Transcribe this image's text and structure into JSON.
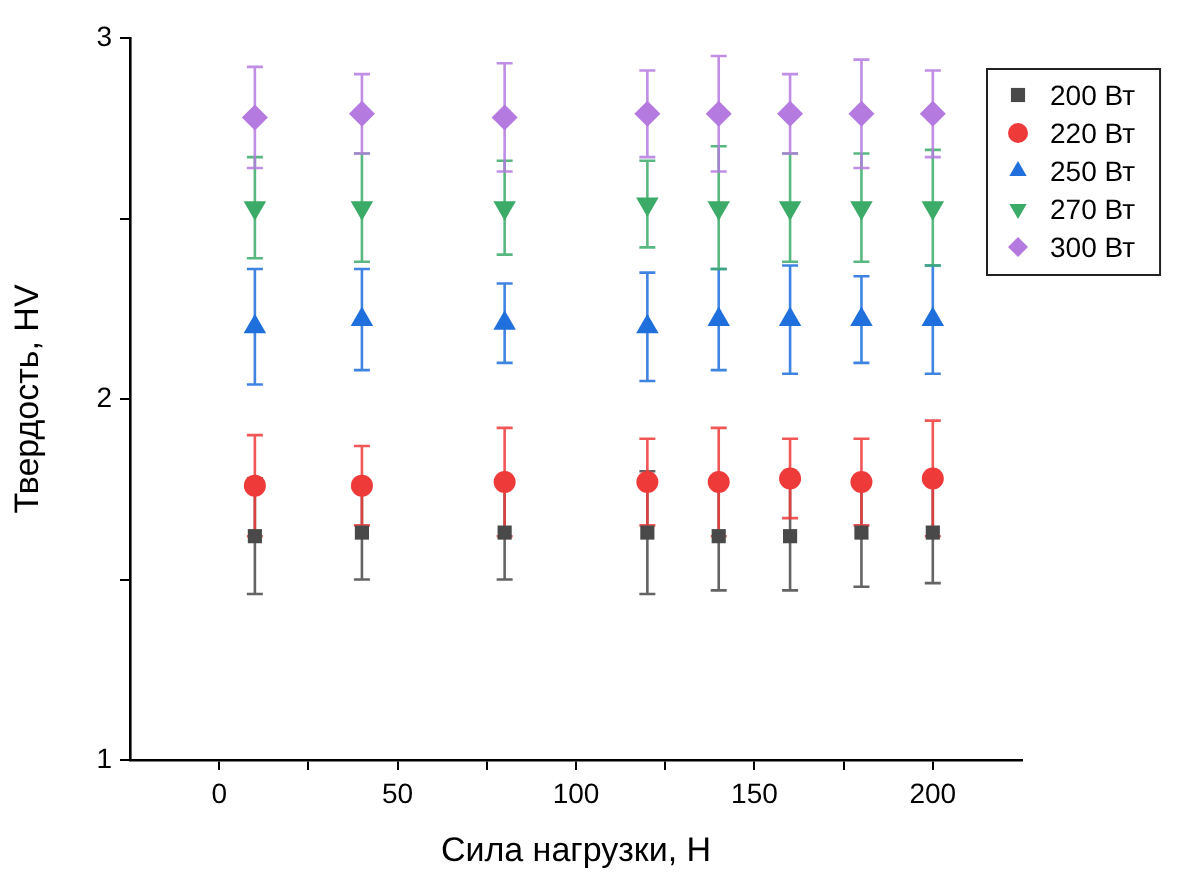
{
  "chart_data": {
    "type": "scatter",
    "xlabel": "Сила нагрузки, Н",
    "ylabel": "Твердость, HV",
    "x": [
      10,
      40,
      80,
      120,
      140,
      160,
      180,
      200
    ],
    "xlim": [
      -25,
      225
    ],
    "xticks": [
      0,
      {
        "value": 25,
        "label": null
      },
      50,
      {
        "value": 75,
        "label": null
      },
      100,
      {
        "value": 125,
        "label": null
      },
      150,
      {
        "value": 175,
        "label": null
      },
      200
    ],
    "ylim": [
      1,
      3
    ],
    "yticks": [
      1,
      {
        "value": 1.5,
        "label": null
      },
      2,
      {
        "value": 2.5,
        "label": null
      },
      3
    ],
    "grid": false,
    "legend": "top right",
    "series": [
      {
        "name": "200 Вт",
        "color": "#494949",
        "marker": "square",
        "values": [
          1.62,
          1.63,
          1.63,
          1.63,
          1.62,
          1.62,
          1.63,
          1.63
        ],
        "errors": [
          0.16,
          0.13,
          0.13,
          0.17,
          0.15,
          0.15,
          0.15,
          0.14
        ]
      },
      {
        "name": "220 Вт",
        "color": "#ef3a3a",
        "marker": "circle",
        "values": [
          1.76,
          1.76,
          1.77,
          1.77,
          1.77,
          1.78,
          1.77,
          1.78
        ],
        "errors": [
          0.14,
          0.11,
          0.15,
          0.12,
          0.15,
          0.11,
          0.12,
          0.16
        ]
      },
      {
        "name": "250 Вт",
        "color": "#1f6fdc",
        "marker": "triangle",
        "values": [
          2.2,
          2.22,
          2.21,
          2.2,
          2.22,
          2.22,
          2.22,
          2.22
        ],
        "errors": [
          0.16,
          0.14,
          0.11,
          0.15,
          0.14,
          0.15,
          0.12,
          0.15
        ]
      },
      {
        "name": "270 Вт",
        "color": "#3cab68",
        "marker": "triangle-down",
        "values": [
          2.53,
          2.53,
          2.53,
          2.54,
          2.53,
          2.53,
          2.53,
          2.53
        ],
        "errors": [
          0.14,
          0.15,
          0.13,
          0.12,
          0.17,
          0.15,
          0.15,
          0.16
        ]
      },
      {
        "name": "300 Вт",
        "color": "#b57ae0",
        "marker": "diamond",
        "values": [
          2.78,
          2.79,
          2.78,
          2.79,
          2.79,
          2.79,
          2.79,
          2.79
        ],
        "errors": [
          0.14,
          0.11,
          0.15,
          0.12,
          0.16,
          0.11,
          0.15,
          0.12
        ]
      }
    ]
  }
}
